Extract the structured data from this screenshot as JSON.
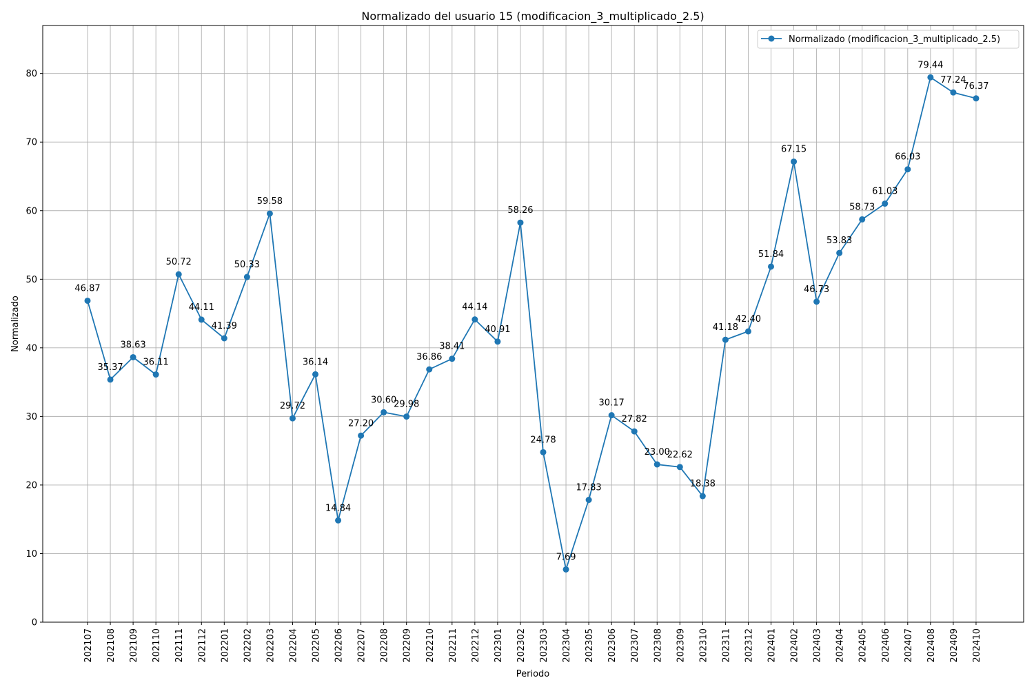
{
  "chart_data": {
    "type": "line",
    "title": "Normalizado del usuario 15 (modificacion_3_multiplicado_2.5)",
    "xlabel": "Periodo",
    "ylabel": "Normalizado",
    "ylim": [
      0,
      87
    ],
    "yticks": [
      "0",
      "10",
      "20",
      "30",
      "40",
      "50",
      "60",
      "70",
      "80"
    ],
    "grid": true,
    "legend_position": "top-right",
    "x": [
      "202107",
      "202108",
      "202109",
      "202110",
      "202111",
      "202112",
      "202201",
      "202202",
      "202203",
      "202204",
      "202205",
      "202206",
      "202207",
      "202208",
      "202209",
      "202210",
      "202211",
      "202212",
      "202301",
      "202302",
      "202303",
      "202304",
      "202305",
      "202306",
      "202307",
      "202308",
      "202309",
      "202310",
      "202311",
      "202312",
      "202401",
      "202402",
      "202403",
      "202404",
      "202405",
      "202406",
      "202407",
      "202408",
      "202409",
      "202410"
    ],
    "series": [
      {
        "name": "Normalizado (modificacion_3_multiplicado_2.5)",
        "color": "#1f77b4",
        "values": [
          46.87,
          35.37,
          38.63,
          36.11,
          50.72,
          44.11,
          41.39,
          50.33,
          59.58,
          29.72,
          36.14,
          14.84,
          27.2,
          30.6,
          29.98,
          36.86,
          38.41,
          44.14,
          40.91,
          58.26,
          24.78,
          7.69,
          17.83,
          30.17,
          27.82,
          23.0,
          22.62,
          18.38,
          41.18,
          42.4,
          51.84,
          67.15,
          46.73,
          53.83,
          58.73,
          61.03,
          66.03,
          79.44,
          77.24,
          76.37
        ],
        "labels": [
          "46.87",
          "35.37",
          "38.63",
          "36.11",
          "50.72",
          "44.11",
          "41.39",
          "50.33",
          "59.58",
          "29.72",
          "36.14",
          "14.84",
          "27.20",
          "30.60",
          "29.98",
          "36.86",
          "38.41",
          "44.14",
          "40.91",
          "58.26",
          "24.78",
          "7.69",
          "17.83",
          "30.17",
          "27.82",
          "23.00",
          "22.62",
          "18.38",
          "41.18",
          "42.40",
          "51.84",
          "67.15",
          "46.73",
          "53.83",
          "58.73",
          "61.03",
          "66.03",
          "79.44",
          "77.24",
          "76.37"
        ]
      }
    ]
  }
}
